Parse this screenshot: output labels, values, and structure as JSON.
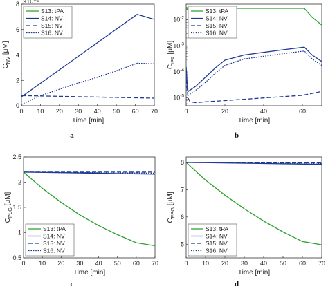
{
  "chart_data": [
    {
      "type": "line",
      "panel_label": "a",
      "xlabel": "Time [min]",
      "ylabel": "C",
      "ylabel_sub": "NV",
      "ylabel_unit": " [μM]",
      "xlim": [
        0,
        70
      ],
      "ylim": [
        0,
        8
      ],
      "xticks": [
        0,
        10,
        20,
        30,
        40,
        50,
        60,
        70
      ],
      "yticks": [
        0,
        2,
        4,
        6,
        8
      ],
      "exponent_label": "×10⁻⁵",
      "yscale": "linear",
      "grid": false,
      "legend_position": "top-left",
      "series": [
        {
          "name": "S13: tPA",
          "color": "#2ca02c",
          "style": "solid",
          "x": [],
          "y": []
        },
        {
          "name": "S14: NV",
          "color": "#1f3a93",
          "style": "solid",
          "x": [
            0,
            61,
            70
          ],
          "y": [
            0.7,
            7.2,
            6.8
          ]
        },
        {
          "name": "S15: NV",
          "color": "#1f3a93",
          "style": "dashed",
          "x": [
            0,
            70
          ],
          "y": [
            0.8,
            0.6
          ]
        },
        {
          "name": "S16: NV",
          "color": "#1f3a93",
          "style": "dotted",
          "x": [
            0,
            10,
            20,
            30,
            40,
            50,
            61,
            70
          ],
          "y": [
            0.1,
            0.8,
            1.3,
            1.8,
            2.25,
            2.75,
            3.35,
            3.3
          ]
        }
      ]
    },
    {
      "type": "line",
      "panel_label": "b",
      "xlabel": "Time [min]",
      "ylabel": "C",
      "ylabel_sub": "tPA",
      "ylabel_unit": " [μM]",
      "xlim": [
        0,
        70
      ],
      "ylim": [
        -5.3,
        -1.4
      ],
      "xticks": [
        0,
        20,
        40,
        60
      ],
      "ytick_exps": [
        -5,
        -4,
        -3,
        -2
      ],
      "yscale": "log",
      "grid": false,
      "legend_position": "top-left",
      "series": [
        {
          "name": "S13: tPA",
          "color": "#2ca02c",
          "style": "solid",
          "x": [
            0,
            0.5,
            1,
            5,
            10,
            20,
            30,
            40,
            50,
            61,
            65,
            70
          ],
          "y": [
            -1.55,
            -1.6,
            -1.55,
            -1.56,
            -1.56,
            -1.56,
            -1.56,
            -1.56,
            -1.56,
            -1.56,
            -1.9,
            -2.2
          ]
        },
        {
          "name": "S14: NV",
          "color": "#1f3a93",
          "style": "solid",
          "x": [
            0,
            0.5,
            1,
            2,
            5,
            10,
            15,
            20,
            30,
            40,
            50,
            61,
            65,
            70
          ],
          "y": [
            -3.8,
            -4.4,
            -4.75,
            -4.7,
            -4.55,
            -4.2,
            -3.85,
            -3.55,
            -3.35,
            -3.25,
            -3.15,
            -3.05,
            -3.35,
            -3.6
          ]
        },
        {
          "name": "S15: NV",
          "color": "#1f3a93",
          "style": "dashed",
          "x": [
            0,
            1,
            2,
            5,
            10,
            20,
            30,
            40,
            50,
            60,
            70
          ],
          "y": [
            -4.3,
            -5.0,
            -5.15,
            -5.18,
            -5.15,
            -5.1,
            -5.05,
            -5.0,
            -4.95,
            -4.9,
            -4.75
          ]
        },
        {
          "name": "S16: NV",
          "color": "#1f3a93",
          "style": "dotted",
          "x": [
            0,
            0.5,
            1,
            2,
            5,
            10,
            15,
            20,
            30,
            40,
            50,
            61,
            65,
            70
          ],
          "y": [
            -3.9,
            -4.6,
            -4.9,
            -4.85,
            -4.7,
            -4.4,
            -4.05,
            -3.75,
            -3.5,
            -3.4,
            -3.3,
            -3.2,
            -3.5,
            -3.75
          ]
        }
      ]
    },
    {
      "type": "line",
      "panel_label": "c",
      "xlabel": "Time [min]",
      "ylabel": "C",
      "ylabel_sub": "PLG",
      "ylabel_unit": " [μM]",
      "xlim": [
        0,
        70
      ],
      "ylim": [
        0.5,
        2.5
      ],
      "xticks": [
        0,
        10,
        20,
        30,
        40,
        50,
        60,
        70
      ],
      "yticks": [
        0.5,
        1,
        1.5,
        2,
        2.5
      ],
      "ytick_labels": [
        "0.5",
        "1",
        "1.5",
        "2",
        "2.5"
      ],
      "yscale": "linear",
      "grid": false,
      "legend_position": "bottom-left",
      "series": [
        {
          "name": "S13: tPA",
          "color": "#2ca02c",
          "style": "solid",
          "x": [
            0,
            10,
            20,
            30,
            40,
            50,
            60,
            70
          ],
          "y": [
            2.2,
            1.88,
            1.6,
            1.35,
            1.14,
            0.96,
            0.8,
            0.74
          ]
        },
        {
          "name": "S14: NV",
          "color": "#1f3a93",
          "style": "solid",
          "x": [
            0,
            70
          ],
          "y": [
            2.2,
            2.16
          ]
        },
        {
          "name": "S15: NV",
          "color": "#1f3a93",
          "style": "dashed",
          "x": [
            0,
            70
          ],
          "y": [
            2.2,
            2.2
          ]
        },
        {
          "name": "S16: NV",
          "color": "#1f3a93",
          "style": "dotted",
          "x": [
            0,
            70
          ],
          "y": [
            2.2,
            2.18
          ]
        }
      ]
    },
    {
      "type": "line",
      "panel_label": "d",
      "xlabel": "Time [min]",
      "ylabel": "C",
      "ylabel_sub": "FBG",
      "ylabel_unit": " [μM]",
      "xlim": [
        0,
        70
      ],
      "ylim": [
        4.5,
        8.2
      ],
      "xticks": [
        0,
        10,
        20,
        30,
        40,
        50,
        60,
        70
      ],
      "yticks": [
        5,
        6,
        7,
        8
      ],
      "yscale": "linear",
      "grid": false,
      "legend_position": "bottom-left",
      "series": [
        {
          "name": "S13: tPA",
          "color": "#2ca02c",
          "style": "solid",
          "x": [
            0,
            10,
            20,
            30,
            40,
            50,
            60,
            70
          ],
          "y": [
            8.0,
            7.35,
            6.8,
            6.3,
            5.85,
            5.45,
            5.1,
            4.98
          ]
        },
        {
          "name": "S14: NV",
          "color": "#1f3a93",
          "style": "solid",
          "x": [
            0,
            70
          ],
          "y": [
            8.0,
            7.93
          ]
        },
        {
          "name": "S15: NV",
          "color": "#1f3a93",
          "style": "dashed",
          "x": [
            0,
            70
          ],
          "y": [
            8.0,
            7.98
          ]
        },
        {
          "name": "S16: NV",
          "color": "#1f3a93",
          "style": "dotted",
          "x": [
            0,
            70
          ],
          "y": [
            8.0,
            7.96
          ]
        }
      ]
    }
  ]
}
